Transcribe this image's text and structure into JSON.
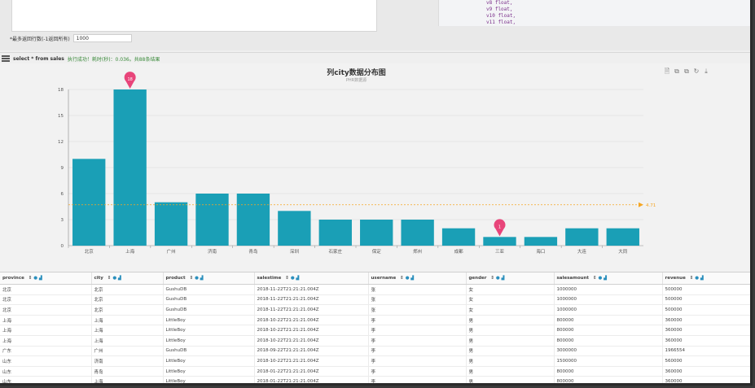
{
  "editor": {
    "code_lines": [
      "v8 float,",
      "v9 float,",
      "v10 float,",
      "v11 float,"
    ]
  },
  "options": {
    "max_rows_label": "*最多返回行数(-1返回所有)",
    "max_rows_value": "1000"
  },
  "status": {
    "sql": "select * from sales",
    "message": "执行成功！耗时(秒)：0.036。共88条结果"
  },
  "toolbox": {
    "icons": [
      "data-view-icon",
      "zoom-icon",
      "zoom-reset-icon",
      "restore-icon",
      "save-image-icon"
    ],
    "glyphs": [
      "🗎",
      "⧉",
      "⧉",
      "↻",
      "⤓"
    ]
  },
  "chart_data": {
    "type": "bar",
    "title": "列city数据分布图",
    "subtitle": "PHR数据源",
    "categories": [
      "北京",
      "上海",
      "广州",
      "济南",
      "青岛",
      "深圳",
      "石家庄",
      "保定",
      "郑州",
      "成都",
      "三亚",
      "海口",
      "大连",
      "大同"
    ],
    "values": [
      10,
      18,
      5,
      6,
      6,
      4,
      3,
      3,
      3,
      2,
      1,
      1,
      2,
      2
    ],
    "yticks": [
      0,
      3,
      6,
      9,
      12,
      15,
      18
    ],
    "ylim": [
      0,
      18
    ],
    "bar_color": "#1a9fb6",
    "max_marker": {
      "label": "18",
      "category": "上海"
    },
    "min_marker": {
      "label": "1",
      "category": "三亚"
    },
    "average_line": {
      "label": "4.71",
      "value": 4.71,
      "color": "#f5a623"
    },
    "grid": true
  },
  "table": {
    "columns": [
      "province",
      "city",
      "product",
      "salestime",
      "username",
      "gender",
      "salesamount",
      "revenue"
    ],
    "rows": [
      [
        "北京",
        "北京",
        "GushuDB",
        "2018-11-22T21:21:21.004Z",
        "张",
        "女",
        "1000000",
        "500000"
      ],
      [
        "北京",
        "北京",
        "GushuDB",
        "2018-11-22T21:21:21.004Z",
        "张",
        "女",
        "1000000",
        "500000"
      ],
      [
        "北京",
        "北京",
        "GushuDB",
        "2018-11-22T21:21:21.004Z",
        "张",
        "女",
        "1000000",
        "500000"
      ],
      [
        "上海",
        "上海",
        "LittleBoy",
        "2018-10-22T21:21:21.004Z",
        "李",
        "男",
        "800000",
        "360000"
      ],
      [
        "上海",
        "上海",
        "LittleBoy",
        "2018-10-22T21:21:21.004Z",
        "李",
        "男",
        "800000",
        "360000"
      ],
      [
        "上海",
        "上海",
        "LittleBoy",
        "2018-10-22T21:21:21.004Z",
        "李",
        "男",
        "800000",
        "360000"
      ],
      [
        "广东",
        "广州",
        "GushuDB",
        "2018-09-22T21:21:21.004Z",
        "李",
        "男",
        "3000000",
        "1966554"
      ],
      [
        "山东",
        "济南",
        "LittleBoy",
        "2018-10-22T21:21:21.004Z",
        "李",
        "男",
        "1500000",
        "560000"
      ],
      [
        "山东",
        "青岛",
        "LittleBoy",
        "2018-01-22T21:21:21.004Z",
        "李",
        "男",
        "800000",
        "360000"
      ],
      [
        "山东",
        "上海",
        "LittleBoy",
        "2018-01-22T21:21:21.004Z",
        "李",
        "男",
        "800000",
        "360000"
      ]
    ]
  }
}
